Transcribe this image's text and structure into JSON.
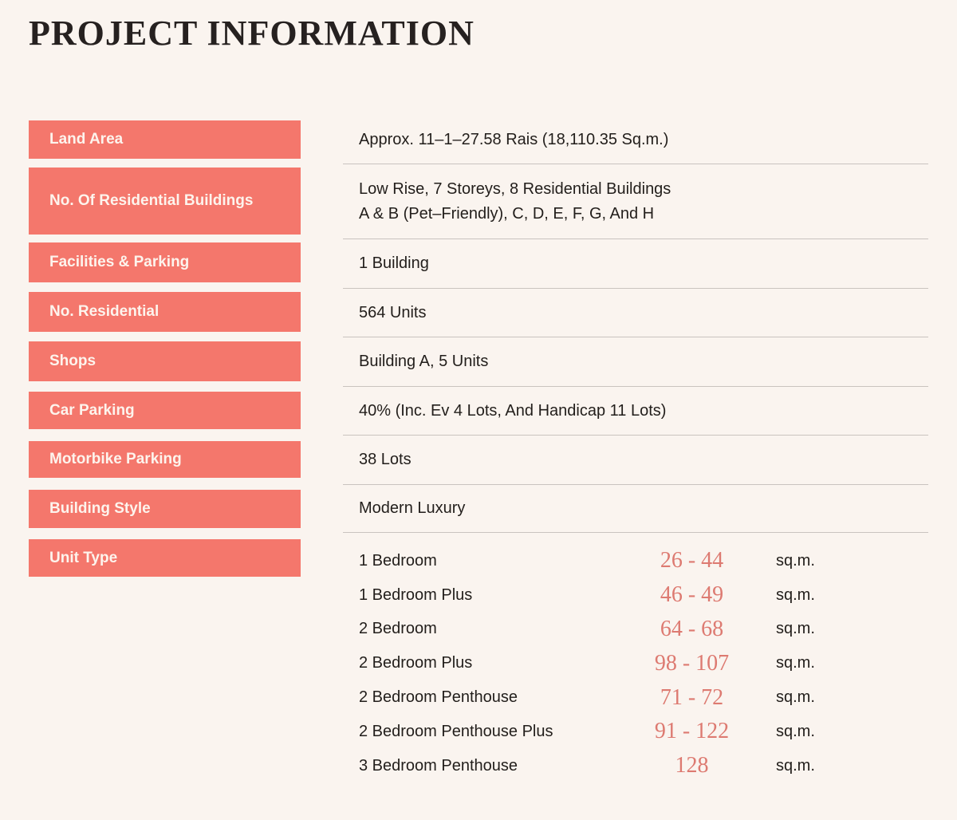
{
  "title": "PROJECT INFORMATION",
  "colors": {
    "background": "#faf4ef",
    "label_box": "#f4776c",
    "label_text": "#fdf4ed",
    "value_text": "#221e1b",
    "divider": "#c9c3bf",
    "range_accent": "#dd7a71"
  },
  "rows": [
    {
      "label": "Land Area",
      "value": "Approx. 11–1–27.58 Rais (18,110.35 Sq.m.)"
    },
    {
      "label": "No. Of Residential Buildings",
      "value_line1": "Low Rise, 7 Storeys, 8 Residential Buildings",
      "value_line2": "A & B (Pet–Friendly), C, D, E, F, G, And H"
    },
    {
      "label": "Facilities & Parking",
      "value": "1 Building"
    },
    {
      "label": "No. Residential",
      "value": "564 Units"
    },
    {
      "label": "Shops",
      "value": "Building A, 5 Units"
    },
    {
      "label": "Car Parking",
      "value": "40% (Inc. Ev 4 Lots, And Handicap 11 Lots)"
    },
    {
      "label": "Motorbike Parking",
      "value": "38 Lots"
    },
    {
      "label": "Building Style",
      "value": "Modern Luxury"
    }
  ],
  "unit_type": {
    "label": "Unit Type",
    "unit_suffix": "sq.m.",
    "units": [
      {
        "name": "1 Bedroom",
        "range": "26 - 44"
      },
      {
        "name": "1 Bedroom Plus",
        "range": "46 - 49"
      },
      {
        "name": "2 Bedroom",
        "range": "64 - 68"
      },
      {
        "name": "2 Bedroom Plus",
        "range": "98 - 107"
      },
      {
        "name": "2 Bedroom Penthouse",
        "range": "71 - 72"
      },
      {
        "name": "2 Bedroom Penthouse Plus",
        "range": "91 - 122"
      },
      {
        "name": "3 Bedroom Penthouse",
        "range": "128"
      }
    ]
  }
}
